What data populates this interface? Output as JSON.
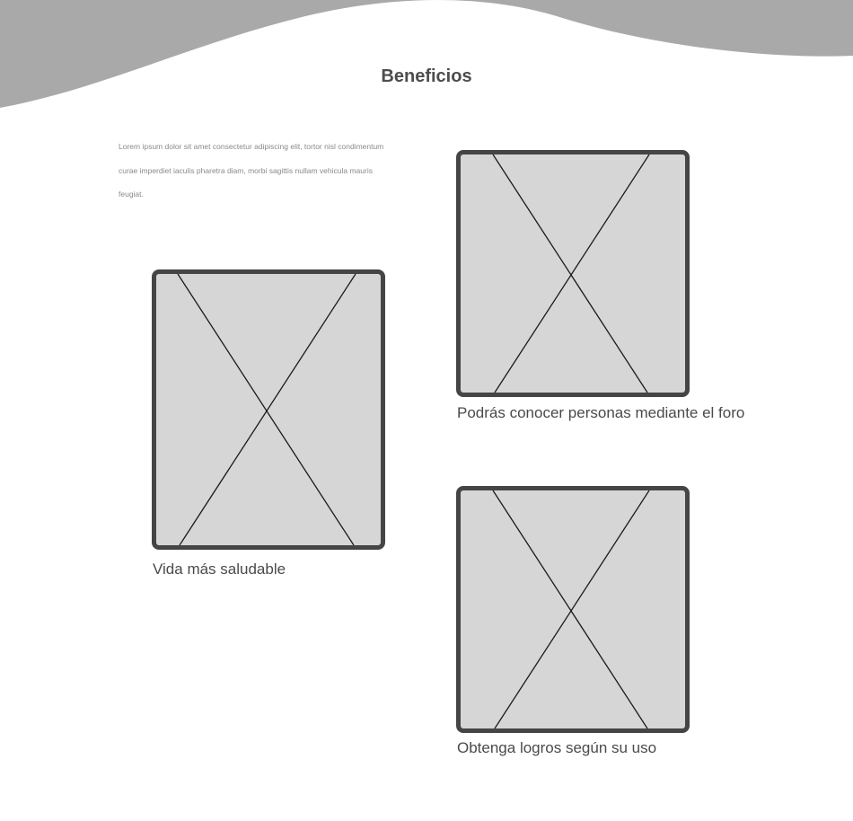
{
  "header": {
    "title": "Beneficios"
  },
  "intro": {
    "text": "Lorem ipsum dolor sit amet consectetur adipiscing elit, tortor nisl condimentum curae imperdiet iaculis pharetra diam, morbi sagittis nullam vehicula mauris feugiat."
  },
  "benefits": [
    {
      "caption": "Vida más saludable",
      "image_icon": "image-placeholder-icon"
    },
    {
      "caption": "Podrás conocer personas mediante el foro",
      "image_icon": "image-placeholder-icon"
    },
    {
      "caption": "Obtenga logros según su uso",
      "image_icon": "image-placeholder-icon"
    }
  ],
  "colors": {
    "wave": "#a9a9a9",
    "placeholder_fill": "#d6d6d6",
    "placeholder_border": "#454545",
    "text": "#4a4a4a",
    "muted_text": "#8a8a8a"
  }
}
